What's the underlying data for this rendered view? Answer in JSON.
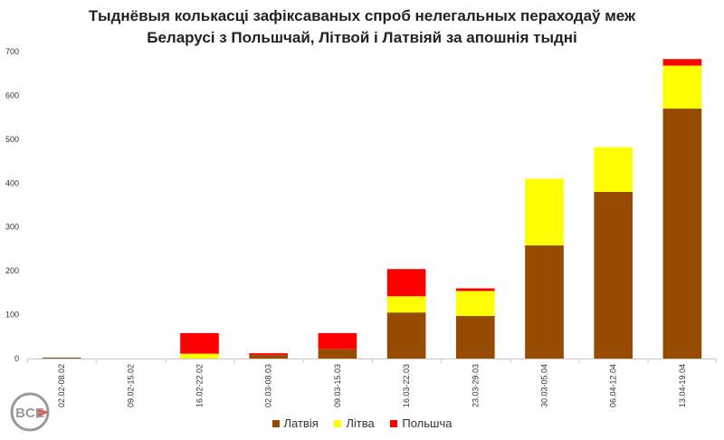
{
  "title_line1": "Тыднёвыя колькасці зафіксаваных спроб нелегальных пераходаў меж",
  "title_line2": "Беларусі з Польшчай, Літвой і Латвіяй за апошнія тыдні",
  "chart_data": {
    "type": "bar",
    "stacked": true,
    "title": "Тыднёвыя колькасці зафіксаваных спроб нелегальных пераходаў меж Беларусі з Польшчай, Літвой і Латвіяй за апошнія тыдні",
    "categories": [
      "02.02-08.02",
      "09.02-15.02",
      "16.02-22.02",
      "02.03-08.03",
      "09.03-15.03",
      "16.03-22.03",
      "23.03-29.03",
      "30.03-05.04",
      "06.04-12.04",
      "13.04-19.04"
    ],
    "series": [
      {
        "name": "Латвія",
        "color": "#964B00",
        "values": [
          2,
          0,
          0,
          8,
          22,
          105,
          97,
          258,
          380,
          570
        ]
      },
      {
        "name": "Літва",
        "color": "#FFFF00",
        "values": [
          0,
          0,
          11,
          0,
          0,
          37,
          57,
          152,
          102,
          98
        ]
      },
      {
        "name": "Польшча",
        "color": "#FF0000",
        "values": [
          0,
          0,
          47,
          4,
          36,
          62,
          6,
          0,
          0,
          15
        ]
      }
    ],
    "ylim": [
      0,
      700
    ],
    "yticks": [
      "0",
      "100",
      "200",
      "300",
      "400",
      "500",
      "600",
      "700"
    ],
    "grid": false,
    "legend_position": "bottom"
  },
  "legend": [
    {
      "label": "Латвія",
      "color": "#964B00"
    },
    {
      "label": "Літва",
      "color": "#FFFF00"
    },
    {
      "label": "Польшча",
      "color": "#FF0000"
    }
  ],
  "logo": {
    "text": "BCE",
    "accent": "#E05555",
    "color": "#9A9A9A"
  }
}
